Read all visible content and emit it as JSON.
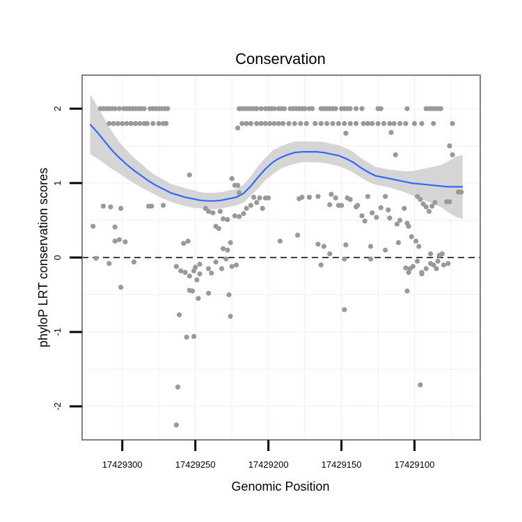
{
  "chart_data": {
    "type": "scatter",
    "title": "Conservation",
    "xlabel": "Genomic Position",
    "ylabel": "phyloP LRT conservation scores",
    "x_reversed": true,
    "xlim": [
      17429327.5,
      17429055
    ],
    "ylim": [
      -2.45,
      2.45
    ],
    "x_ticks": [
      17429300,
      17429250,
      17429200,
      17429150,
      17429100
    ],
    "x_tick_labels": [
      "17429300",
      "17429250",
      "17429200",
      "17429150",
      "17429100"
    ],
    "y_ticks": [
      -2,
      -1,
      0,
      1,
      2
    ],
    "y_tick_labels": [
      "-2",
      "-1",
      "0",
      "1",
      "2"
    ],
    "reference_line": {
      "y": 0,
      "style": "dashed"
    },
    "grid": true,
    "colors": {
      "points": "#999999",
      "smooth": "#3366ff",
      "band": "#d3d3d3",
      "frame": "#7f7f7f"
    },
    "points": [
      [
        17429315,
        2.0
      ],
      [
        17429313,
        2.0
      ],
      [
        17429311,
        2.0
      ],
      [
        17429309,
        2.0
      ],
      [
        17429307,
        2.0
      ],
      [
        17429305,
        2.0
      ],
      [
        17429302,
        2.0
      ],
      [
        17429299,
        2.0
      ],
      [
        17429297,
        2.0
      ],
      [
        17429295,
        2.0
      ],
      [
        17429293,
        2.0
      ],
      [
        17429291,
        2.0
      ],
      [
        17429289,
        2.0
      ],
      [
        17429287,
        2.0
      ],
      [
        17429285,
        2.0
      ],
      [
        17429281,
        2.0
      ],
      [
        17429279,
        2.0
      ],
      [
        17429277,
        2.0
      ],
      [
        17429275,
        2.0
      ],
      [
        17429273,
        2.0
      ],
      [
        17429271,
        2.0
      ],
      [
        17429269,
        2.0
      ],
      [
        17429309,
        1.8
      ],
      [
        17429306,
        1.8
      ],
      [
        17429303,
        1.8
      ],
      [
        17429300,
        1.8
      ],
      [
        17429297,
        1.8
      ],
      [
        17429294,
        1.8
      ],
      [
        17429291,
        1.8
      ],
      [
        17429288,
        1.8
      ],
      [
        17429285,
        1.8
      ],
      [
        17429283,
        1.8
      ],
      [
        17429279,
        1.8
      ],
      [
        17429275,
        1.8
      ],
      [
        17429272,
        1.8
      ],
      [
        17429270,
        1.8
      ],
      [
        17429220,
        2.0
      ],
      [
        17429218,
        2.0
      ],
      [
        17429216,
        2.0
      ],
      [
        17429214,
        2.0
      ],
      [
        17429212,
        2.0
      ],
      [
        17429210,
        2.0
      ],
      [
        17429208,
        2.0
      ],
      [
        17429205,
        2.0
      ],
      [
        17429202,
        2.0
      ],
      [
        17429200,
        2.0
      ],
      [
        17429198,
        2.0
      ],
      [
        17429196,
        2.0
      ],
      [
        17429193,
        2.0
      ],
      [
        17429191,
        2.0
      ],
      [
        17429189,
        2.0
      ],
      [
        17429185,
        2.0
      ],
      [
        17429183,
        2.0
      ],
      [
        17429181,
        2.0
      ],
      [
        17429179,
        2.0
      ],
      [
        17429177,
        2.0
      ],
      [
        17429175,
        2.0
      ],
      [
        17429172,
        2.0
      ],
      [
        17429170,
        2.0
      ],
      [
        17429164,
        2.0
      ],
      [
        17429162,
        2.0
      ],
      [
        17429160,
        2.0
      ],
      [
        17429158,
        2.0
      ],
      [
        17429156,
        2.0
      ],
      [
        17429154,
        2.0
      ],
      [
        17429150,
        2.0
      ],
      [
        17429148,
        2.0
      ],
      [
        17429146,
        2.0
      ],
      [
        17429144,
        2.0
      ],
      [
        17429140,
        2.0
      ],
      [
        17429136,
        2.0
      ],
      [
        17429125,
        2.0
      ],
      [
        17429123,
        2.0
      ],
      [
        17429105,
        2.0
      ],
      [
        17429092,
        2.0
      ],
      [
        17429090,
        2.0
      ],
      [
        17429088,
        2.0
      ],
      [
        17429086,
        2.0
      ],
      [
        17429084,
        2.0
      ],
      [
        17429082,
        2.0
      ],
      [
        17429218,
        1.8
      ],
      [
        17429215,
        1.8
      ],
      [
        17429212,
        1.8
      ],
      [
        17429208,
        1.8
      ],
      [
        17429205,
        1.8
      ],
      [
        17429202,
        1.8
      ],
      [
        17429199,
        1.8
      ],
      [
        17429196,
        1.8
      ],
      [
        17429193,
        1.8
      ],
      [
        17429190,
        1.8
      ],
      [
        17429186,
        1.8
      ],
      [
        17429182,
        1.8
      ],
      [
        17429178,
        1.8
      ],
      [
        17429174,
        1.8
      ],
      [
        17429168,
        1.8
      ],
      [
        17429164,
        1.8
      ],
      [
        17429160,
        1.8
      ],
      [
        17429156,
        1.8
      ],
      [
        17429152,
        1.8
      ],
      [
        17429148,
        1.8
      ],
      [
        17429144,
        1.8
      ],
      [
        17429140,
        1.8
      ],
      [
        17429135,
        1.8
      ],
      [
        17429132,
        1.8
      ],
      [
        17429129,
        1.8
      ],
      [
        17429125,
        1.8
      ],
      [
        17429121,
        1.8
      ],
      [
        17429117,
        1.8
      ],
      [
        17429114,
        1.8
      ],
      [
        17429110,
        1.8
      ],
      [
        17429106,
        1.8
      ],
      [
        17429100,
        1.8
      ],
      [
        17429095,
        1.8
      ],
      [
        17429087,
        1.8
      ],
      [
        17429074,
        1.8
      ],
      [
        17429221,
        1.74
      ],
      [
        17429147,
        1.67
      ],
      [
        17429116,
        1.68
      ],
      [
        17429076,
        1.5
      ],
      [
        17429074,
        1.38
      ],
      [
        17429113,
        1.38
      ],
      [
        17429254,
        1.11
      ],
      [
        17429225,
        1.06
      ],
      [
        17429223,
        0.97
      ],
      [
        17429221,
        0.97
      ],
      [
        17429220,
        0.87
      ],
      [
        17429210,
        0.81
      ],
      [
        17429206,
        0.8
      ],
      [
        17429204,
        0.66
      ],
      [
        17429202,
        0.8
      ],
      [
        17429200,
        0.8
      ],
      [
        17429179,
        0.79
      ],
      [
        17429177,
        0.81
      ],
      [
        17429172,
        0.81
      ],
      [
        17429166,
        0.82
      ],
      [
        17429157,
        0.85
      ],
      [
        17429154,
        0.8
      ],
      [
        17429152,
        0.7
      ],
      [
        17429146,
        0.8
      ],
      [
        17429144,
        0.78
      ],
      [
        17429139,
        0.7
      ],
      [
        17429132,
        0.82
      ],
      [
        17429129,
        0.6
      ],
      [
        17429126,
        0.54
      ],
      [
        17429120,
        0.82
      ],
      [
        17429118,
        0.64
      ],
      [
        17429158,
        0.71
      ],
      [
        17429150,
        0.7
      ],
      [
        17429140,
        0.68
      ],
      [
        17429136,
        0.56
      ],
      [
        17429134,
        0.49
      ],
      [
        17429123,
        0.67
      ],
      [
        17429117,
        0.53
      ],
      [
        17429112,
        0.45
      ],
      [
        17429110,
        0.5
      ],
      [
        17429107,
        0.66
      ],
      [
        17429105,
        0.46
      ],
      [
        17429098,
        0.82
      ],
      [
        17429096,
        0.78
      ],
      [
        17429094,
        0.72
      ],
      [
        17429092,
        0.68
      ],
      [
        17429090,
        0.62
      ],
      [
        17429088,
        0.69
      ],
      [
        17429086,
        0.74
      ],
      [
        17429078,
        0.75
      ],
      [
        17429076,
        0.75
      ],
      [
        17429070,
        0.88
      ],
      [
        17429068,
        0.88
      ],
      [
        17429320,
        0.42
      ],
      [
        17429313,
        0.69
      ],
      [
        17429308,
        0.68
      ],
      [
        17429301,
        0.66
      ],
      [
        17429282,
        0.69
      ],
      [
        17429280,
        0.69
      ],
      [
        17429272,
        0.7
      ],
      [
        17429243,
        0.66
      ],
      [
        17429241,
        0.62
      ],
      [
        17429238,
        0.6
      ],
      [
        17429233,
        0.62
      ],
      [
        17429231,
        0.52
      ],
      [
        17429228,
        0.51
      ],
      [
        17429223,
        0.56
      ],
      [
        17429220,
        0.55
      ],
      [
        17429217,
        0.59
      ],
      [
        17429215,
        0.66
      ],
      [
        17429212,
        0.7
      ],
      [
        17429208,
        0.74
      ],
      [
        17429305,
        0.41
      ],
      [
        17429302,
        0.24
      ],
      [
        17429305,
        0.22
      ],
      [
        17429298,
        0.21
      ],
      [
        17429258,
        0.19
      ],
      [
        17429255,
        0.22
      ],
      [
        17429236,
        0.42
      ],
      [
        17429234,
        0.39
      ],
      [
        17429231,
        0.12
      ],
      [
        17429228,
        0.1
      ],
      [
        17429226,
        0.2
      ],
      [
        17429192,
        0.22
      ],
      [
        17429180,
        0.3
      ],
      [
        17429166,
        0.18
      ],
      [
        17429162,
        0.15
      ],
      [
        17429158,
        0.05
      ],
      [
        17429147,
        0.17
      ],
      [
        17429130,
        0.15
      ],
      [
        17429120,
        0.1
      ],
      [
        17429111,
        0.2
      ],
      [
        17429104,
        0.42
      ],
      [
        17429102,
        0.28
      ],
      [
        17429099,
        0.22
      ],
      [
        17429097,
        0.15
      ],
      [
        17429089,
        0.05
      ],
      [
        17429083,
        0.03
      ],
      [
        17429081,
        0.05
      ],
      [
        17429318,
        -0.01
      ],
      [
        17429309,
        -0.08
      ],
      [
        17429292,
        -0.06
      ],
      [
        17429250,
        -0.13
      ],
      [
        17429247,
        -0.09
      ],
      [
        17429241,
        -0.15
      ],
      [
        17429239,
        -0.21
      ],
      [
        17429236,
        -0.06
      ],
      [
        17429232,
        -0.15
      ],
      [
        17429229,
        -0.02
      ],
      [
        17429225,
        -0.12
      ],
      [
        17429222,
        -0.1
      ],
      [
        17429164,
        -0.1
      ],
      [
        17429148,
        -0.02
      ],
      [
        17429130,
        -0.02
      ],
      [
        17429104,
        -0.2
      ],
      [
        17429101,
        -0.12
      ],
      [
        17429098,
        -0.05
      ],
      [
        17429095,
        -0.22
      ],
      [
        17429092,
        -0.15
      ],
      [
        17429089,
        -0.08
      ],
      [
        17429084,
        -0.05
      ],
      [
        17429080,
        -0.1
      ],
      [
        17429077,
        -0.08
      ],
      [
        17429263,
        -0.12
      ],
      [
        17429260,
        -0.18
      ],
      [
        17429257,
        -0.2
      ],
      [
        17429254,
        -0.25
      ],
      [
        17429251,
        -0.18
      ],
      [
        17429249,
        -0.3
      ],
      [
        17429247,
        -0.22
      ],
      [
        17429301,
        -0.4
      ],
      [
        17429248,
        -0.55
      ],
      [
        17429241,
        -0.48
      ],
      [
        17429252,
        -0.45
      ],
      [
        17429254,
        -0.44
      ],
      [
        17429227,
        -0.5
      ],
      [
        17429105,
        -0.45
      ],
      [
        17429106,
        -0.14
      ],
      [
        17429103,
        -0.15
      ],
      [
        17429087,
        -0.1
      ],
      [
        17429085,
        -0.15
      ],
      [
        17429095,
        -0.2
      ],
      [
        17429226,
        -0.79
      ],
      [
        17429261,
        -0.77
      ],
      [
        17429148,
        -0.7
      ],
      [
        17429256,
        -1.07
      ],
      [
        17429251,
        -1.06
      ],
      [
        17429262,
        -1.74
      ],
      [
        17429096,
        -1.71
      ],
      [
        17429263,
        -2.25
      ]
    ],
    "smooth": {
      "x": [
        17429322,
        17429317,
        17429312,
        17429307,
        17429302,
        17429297,
        17429292,
        17429287,
        17429282,
        17429277,
        17429272,
        17429267,
        17429262,
        17429257,
        17429252,
        17429247,
        17429242,
        17429237,
        17429232,
        17429227,
        17429222,
        17429217,
        17429212,
        17429207,
        17429202,
        17429197,
        17429192,
        17429187,
        17429182,
        17429177,
        17429172,
        17429167,
        17429162,
        17429157,
        17429152,
        17429147,
        17429142,
        17429137,
        17429132,
        17429127,
        17429122,
        17429117,
        17429112,
        17429107,
        17429102,
        17429097,
        17429092,
        17429087,
        17429082,
        17429077,
        17429072,
        17429067
      ],
      "fit": [
        1.79,
        1.68,
        1.56,
        1.44,
        1.34,
        1.25,
        1.17,
        1.1,
        1.03,
        0.97,
        0.92,
        0.87,
        0.84,
        0.81,
        0.79,
        0.77,
        0.76,
        0.76,
        0.77,
        0.79,
        0.81,
        0.86,
        0.96,
        1.08,
        1.19,
        1.28,
        1.34,
        1.38,
        1.41,
        1.42,
        1.42,
        1.42,
        1.41,
        1.39,
        1.37,
        1.33,
        1.28,
        1.21,
        1.15,
        1.1,
        1.08,
        1.06,
        1.04,
        1.02,
        1.0,
        0.99,
        0.98,
        0.97,
        0.96,
        0.95,
        0.95,
        0.95
      ],
      "lower": [
        1.39,
        1.33,
        1.26,
        1.19,
        1.13,
        1.06,
        1.0,
        0.94,
        0.89,
        0.84,
        0.79,
        0.75,
        0.72,
        0.69,
        0.67,
        0.66,
        0.65,
        0.65,
        0.66,
        0.68,
        0.7,
        0.74,
        0.83,
        0.93,
        1.04,
        1.12,
        1.19,
        1.23,
        1.26,
        1.28,
        1.28,
        1.28,
        1.27,
        1.25,
        1.23,
        1.19,
        1.14,
        1.08,
        1.02,
        0.98,
        0.96,
        0.94,
        0.91,
        0.88,
        0.84,
        0.8,
        0.76,
        0.72,
        0.68,
        0.61,
        0.55,
        0.52
      ],
      "upper": [
        2.19,
        2.03,
        1.86,
        1.69,
        1.55,
        1.44,
        1.34,
        1.26,
        1.17,
        1.1,
        1.05,
        0.99,
        0.96,
        0.93,
        0.91,
        0.88,
        0.87,
        0.87,
        0.88,
        0.9,
        0.92,
        0.98,
        1.09,
        1.23,
        1.34,
        1.44,
        1.49,
        1.53,
        1.56,
        1.56,
        1.56,
        1.56,
        1.55,
        1.53,
        1.51,
        1.47,
        1.42,
        1.34,
        1.28,
        1.22,
        1.2,
        1.18,
        1.17,
        1.16,
        1.16,
        1.18,
        1.2,
        1.22,
        1.24,
        1.29,
        1.35,
        1.38
      ]
    }
  }
}
